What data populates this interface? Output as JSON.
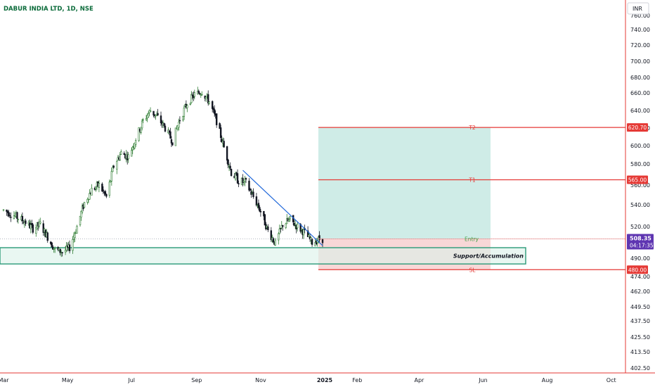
{
  "chart_data": {
    "type": "candlestick",
    "title": "DABUR INDIA LTD, 1D, NSE",
    "currency": "INR",
    "colors": {
      "up": "#2e7d32",
      "down": "#131722",
      "levels": "#e53935",
      "support_border": "#2a9a78",
      "support_fill": "#daf2ea",
      "target_fill": "#bfe6df",
      "stop_fill": "#f7d0d0",
      "trendline": "#1e66d9",
      "axis_text": "#131722",
      "current_price_bg": "#5e35b1"
    },
    "y_axis": {
      "ticks": [
        402.5,
        413.5,
        425.5,
        437.5,
        449.5,
        462,
        474,
        490,
        520,
        540,
        560,
        580,
        600,
        620,
        640,
        660,
        680,
        700,
        720,
        740,
        760
      ],
      "tick_labels": [
        "402.50",
        "413.50",
        "425.50",
        "437.50",
        "449.50",
        "462.00",
        "474.00",
        "490.00",
        "520.00",
        "540.00",
        "560.00",
        "580.00",
        "600.00",
        "620.00",
        "640.00",
        "660.00",
        "680.00",
        "700.00",
        "720.00",
        "740.00",
        "760.00"
      ]
    },
    "x_axis": {
      "labels": [
        "Mar",
        "May",
        "Jul",
        "Sep",
        "Nov",
        "2025",
        "Feb",
        "Apr",
        "Jun",
        "Aug",
        "Oct"
      ],
      "label_bold": "2025"
    },
    "price_path": [
      [
        "2024-03-01",
        535
      ],
      [
        "2024-03-08",
        532
      ],
      [
        "2024-03-15",
        528
      ],
      [
        "2024-03-22",
        524
      ],
      [
        "2024-03-29",
        518
      ],
      [
        "2024-04-05",
        522
      ],
      [
        "2024-04-12",
        510
      ],
      [
        "2024-04-19",
        498
      ],
      [
        "2024-04-26",
        496
      ],
      [
        "2024-05-03",
        500
      ],
      [
        "2024-05-10",
        520
      ],
      [
        "2024-05-17",
        542
      ],
      [
        "2024-05-24",
        555
      ],
      [
        "2024-05-31",
        560
      ],
      [
        "2024-06-07",
        548
      ],
      [
        "2024-06-14",
        578
      ],
      [
        "2024-06-21",
        592
      ],
      [
        "2024-06-28",
        588
      ],
      [
        "2024-07-05",
        608
      ],
      [
        "2024-07-12",
        628
      ],
      [
        "2024-07-19",
        640
      ],
      [
        "2024-07-26",
        632
      ],
      [
        "2024-08-02",
        620
      ],
      [
        "2024-08-09",
        605
      ],
      [
        "2024-08-16",
        630
      ],
      [
        "2024-08-23",
        648
      ],
      [
        "2024-08-30",
        658
      ],
      [
        "2024-09-06",
        662
      ],
      [
        "2024-09-13",
        650
      ],
      [
        "2024-09-20",
        628
      ],
      [
        "2024-09-27",
        598
      ],
      [
        "2024-10-04",
        572
      ],
      [
        "2024-10-11",
        564
      ],
      [
        "2024-10-18",
        562
      ],
      [
        "2024-10-25",
        548
      ],
      [
        "2024-11-01",
        534
      ],
      [
        "2024-11-08",
        516
      ],
      [
        "2024-11-15",
        504
      ],
      [
        "2024-11-22",
        522
      ],
      [
        "2024-11-29",
        526
      ],
      [
        "2024-12-06",
        520
      ],
      [
        "2024-12-13",
        514
      ],
      [
        "2024-12-20",
        505
      ],
      [
        "2024-12-27",
        508
      ]
    ],
    "levels": [
      {
        "label": "T2",
        "price_label": "620.70",
        "value": 620.7
      },
      {
        "label": "T1",
        "price_label": "565.00",
        "value": 565.0
      },
      {
        "label": "Entry",
        "value": 508.35
      },
      {
        "label": "SL",
        "price_label": "480.00",
        "value": 480.0
      }
    ],
    "current_price": {
      "value": 508.35,
      "label": "508.35",
      "countdown": "04:17:35"
    },
    "support_zone": {
      "label": "Support/Accumulation",
      "from": 485,
      "to": 500
    },
    "trendline": {
      "from": {
        "date": "2024-10-15",
        "price": 574
      },
      "to": {
        "date": "2024-12-30",
        "price": 502
      }
    }
  }
}
